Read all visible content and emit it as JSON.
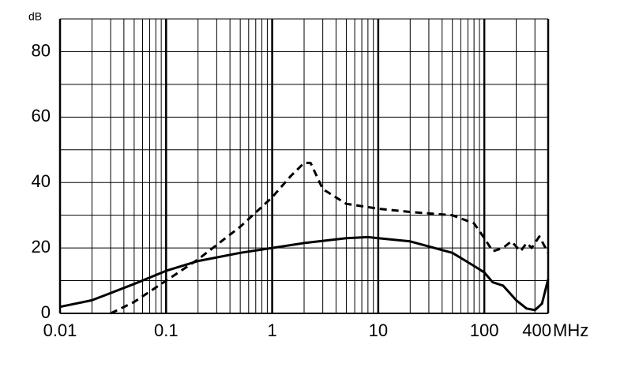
{
  "chart_data": {
    "type": "line",
    "log_x": true,
    "grid": true,
    "ylabel": "dB",
    "xlabel": "MHz",
    "xlim": [
      0.01,
      400
    ],
    "ylim": [
      0,
      90
    ],
    "xticks": [
      0.01,
      0.1,
      1,
      10,
      100,
      400
    ],
    "x_minor_ticks": [
      0.02,
      0.03,
      0.04,
      0.05,
      0.06,
      0.07,
      0.08,
      0.09,
      0.2,
      0.3,
      0.4,
      0.5,
      0.6,
      0.7,
      0.8,
      0.9,
      2,
      3,
      4,
      5,
      6,
      7,
      8,
      9,
      20,
      30,
      40,
      50,
      60,
      70,
      80,
      90,
      200,
      300
    ],
    "yticks": [
      0,
      20,
      40,
      60,
      80
    ],
    "y_minor_ticks": [
      10,
      30,
      50,
      70,
      90
    ],
    "series": [
      {
        "color": "#000000",
        "dash": false,
        "x": [
          0.01,
          0.02,
          0.05,
          0.1,
          0.2,
          0.5,
          1,
          2,
          5,
          8,
          10,
          20,
          50,
          80,
          100,
          120,
          150,
          200,
          250,
          300,
          350,
          400
        ],
        "values": [
          2,
          4,
          9,
          13,
          16,
          18.5,
          20,
          21.5,
          23,
          23.3,
          23,
          22,
          18.5,
          14.5,
          12.5,
          9.5,
          8.5,
          4,
          1.5,
          1,
          3,
          10.5
        ]
      },
      {
        "color": "#000000",
        "dash": true,
        "x": [
          0.03,
          0.05,
          0.1,
          0.2,
          0.5,
          1,
          1.5,
          2,
          2.3,
          3,
          5,
          10,
          20,
          50,
          80,
          100,
          120,
          150,
          180,
          220,
          250,
          280,
          330,
          400
        ],
        "values": [
          0,
          3.5,
          10,
          16.5,
          26.5,
          35.5,
          42,
          46,
          46,
          38,
          33.5,
          32,
          31,
          30,
          27.5,
          23,
          19,
          20,
          22,
          19,
          21.5,
          20,
          23.5,
          18.5
        ]
      }
    ]
  }
}
